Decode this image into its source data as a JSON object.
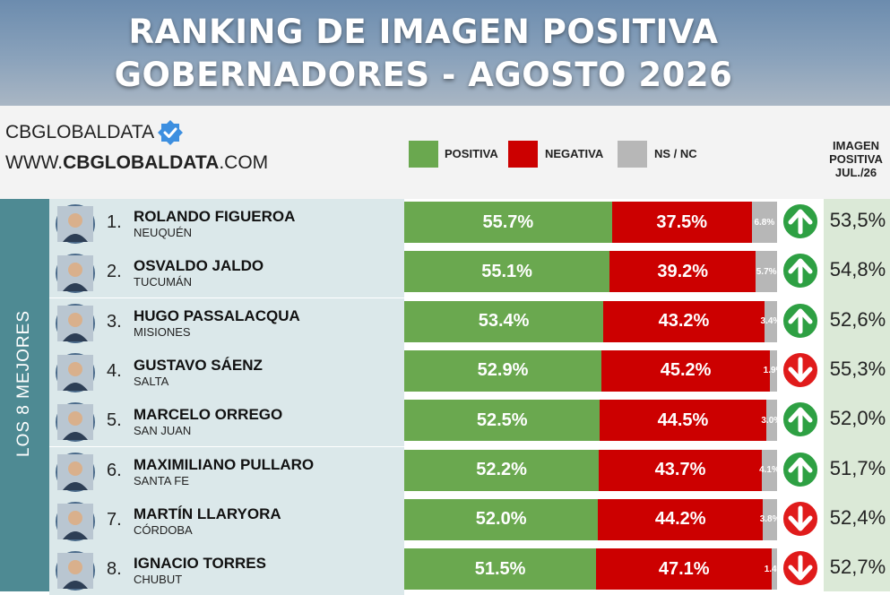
{
  "header": {
    "title_line1": "RANKING DE IMAGEN POSITIVA",
    "title_line2": "GOBERNADORES - AGOSTO 2026"
  },
  "brand": {
    "name": "CBGLOBALDATA",
    "site_prefix": "WWW.",
    "site_bold": "CBGLOBALDATA",
    "site_suffix": ".COM",
    "verified_icon": "verified-badge-icon"
  },
  "legend": {
    "positive": "POSITIVA",
    "negative": "NEGATIVA",
    "nsnc": "NS / NC"
  },
  "column_header": {
    "line1": "IMAGEN",
    "line2": "POSITIVA",
    "line3": "JUL./26"
  },
  "side_label": "LOS 8 MEJORES",
  "colors": {
    "positive": "#6aa84f",
    "negative": "#cc0000",
    "nsnc": "#b7b7b7",
    "up": "#2ea043",
    "down": "#e01b1b"
  },
  "chart_data": {
    "type": "bar",
    "stacked": true,
    "orientation": "horizontal",
    "title": "RANKING DE IMAGEN POSITIVA GOBERNADORES - AGOSTO 2026",
    "categories": [
      "ROLANDO FIGUEROA",
      "OSVALDO JALDO",
      "HUGO PASSALACQUA",
      "GUSTAVO SÁENZ",
      "MARCELO ORREGO",
      "MAXIMILIANO PULLARO",
      "MARTÍN LLARYORA",
      "IGNACIO TORRES"
    ],
    "series": [
      {
        "name": "POSITIVA",
        "values": [
          55.7,
          55.1,
          53.4,
          52.9,
          52.5,
          52.2,
          52.0,
          51.5
        ]
      },
      {
        "name": "NEGATIVA",
        "values": [
          37.5,
          39.2,
          43.2,
          45.2,
          44.5,
          43.7,
          44.2,
          47.1
        ]
      },
      {
        "name": "NS / NC",
        "values": [
          6.8,
          5.7,
          3.4,
          1.9,
          3.0,
          4.1,
          3.8,
          1.4
        ]
      }
    ],
    "previous_month": {
      "name": "IMAGEN POSITIVA JUL./26",
      "values": [
        53.5,
        54.8,
        52.6,
        55.3,
        52.0,
        51.7,
        52.4,
        52.7
      ]
    },
    "trend": [
      "up",
      "up",
      "up",
      "down",
      "up",
      "up",
      "down",
      "down"
    ],
    "xlim": [
      0,
      100
    ],
    "legend_position": "top"
  },
  "rows": [
    {
      "rank": "1.",
      "name": "ROLANDO FIGUEROA",
      "province": "NEUQUÉN",
      "pos_label": "55.7%",
      "neg_label": "37.5%",
      "ns_label": "6.8%",
      "prev_label": "53,5%",
      "trend_icon": "arrow-up-icon"
    },
    {
      "rank": "2.",
      "name": "OSVALDO JALDO",
      "province": "TUCUMÁN",
      "pos_label": "55.1%",
      "neg_label": "39.2%",
      "ns_label": "5.7%",
      "prev_label": "54,8%",
      "trend_icon": "arrow-up-icon"
    },
    {
      "rank": "3.",
      "name": "HUGO PASSALACQUA",
      "province": "MISIONES",
      "pos_label": "53.4%",
      "neg_label": "43.2%",
      "ns_label": "3.4%",
      "prev_label": "52,6%",
      "trend_icon": "arrow-up-icon"
    },
    {
      "rank": "4.",
      "name": "GUSTAVO SÁENZ",
      "province": "SALTA",
      "pos_label": "52.9%",
      "neg_label": "45.2%",
      "ns_label": "1.9%",
      "prev_label": "55,3%",
      "trend_icon": "arrow-down-icon"
    },
    {
      "rank": "5.",
      "name": "MARCELO ORREGO",
      "province": "SAN JUAN",
      "pos_label": "52.5%",
      "neg_label": "44.5%",
      "ns_label": "3.0%",
      "prev_label": "52,0%",
      "trend_icon": "arrow-up-icon"
    },
    {
      "rank": "6.",
      "name": "MAXIMILIANO PULLARO",
      "province": "SANTA FE",
      "pos_label": "52.2%",
      "neg_label": "43.7%",
      "ns_label": "4.1%",
      "prev_label": "51,7%",
      "trend_icon": "arrow-up-icon"
    },
    {
      "rank": "7.",
      "name": "MARTÍN LLARYORA",
      "province": "CÓRDOBA",
      "pos_label": "52.0%",
      "neg_label": "44.2%",
      "ns_label": "3.8%",
      "prev_label": "52,4%",
      "trend_icon": "arrow-down-icon"
    },
    {
      "rank": "8.",
      "name": "IGNACIO TORRES",
      "province": "CHUBUT",
      "pos_label": "51.5%",
      "neg_label": "47.1%",
      "ns_label": "1.4%",
      "prev_label": "52,7%",
      "trend_icon": "arrow-down-icon"
    }
  ]
}
